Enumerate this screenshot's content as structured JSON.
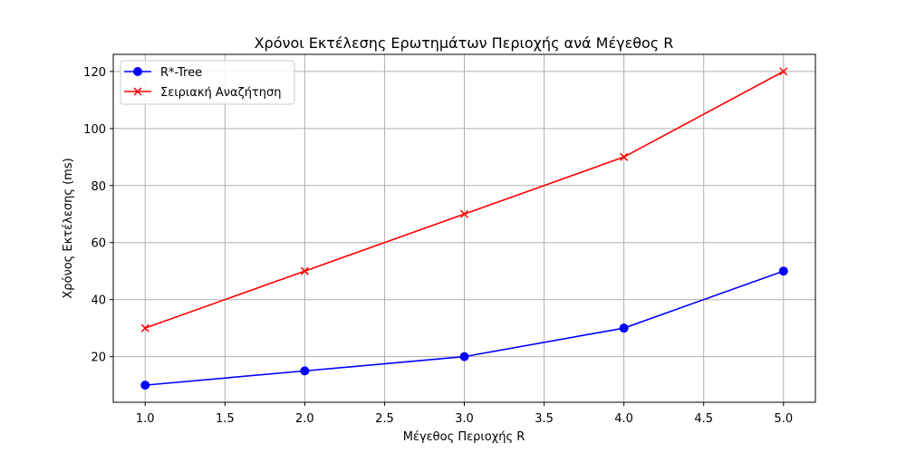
{
  "chart_data": {
    "type": "line",
    "title": "Χρόνοι Εκτέλεσης Ερωτημάτων Περιοχής ανά Μέγεθος R",
    "xlabel": "Μέγεθος Περιοχής R",
    "ylabel": "Χρόνος Εκτέλεσης (ms)",
    "x": [
      1.0,
      2.0,
      3.0,
      4.0,
      5.0
    ],
    "xlim": [
      0.8,
      5.2
    ],
    "ylim": [
      4,
      126
    ],
    "xticks": [
      1.0,
      1.5,
      2.0,
      2.5,
      3.0,
      3.5,
      4.0,
      4.5,
      5.0
    ],
    "xtick_labels": [
      "1.0",
      "1.5",
      "2.0",
      "2.5",
      "3.0",
      "3.5",
      "4.0",
      "4.5",
      "5.0"
    ],
    "yticks": [
      20,
      40,
      60,
      80,
      100,
      120
    ],
    "ytick_labels": [
      "20",
      "40",
      "60",
      "80",
      "100",
      "120"
    ],
    "grid": true,
    "legend_position": "top-left",
    "series": [
      {
        "name": "R*-Tree",
        "values": [
          10,
          15,
          20,
          30,
          50
        ],
        "color": "#0000ff",
        "marker": "circle"
      },
      {
        "name": "Σειριακή Αναζήτηση",
        "values": [
          30,
          50,
          70,
          90,
          120
        ],
        "color": "#ff0000",
        "marker": "x"
      }
    ]
  }
}
